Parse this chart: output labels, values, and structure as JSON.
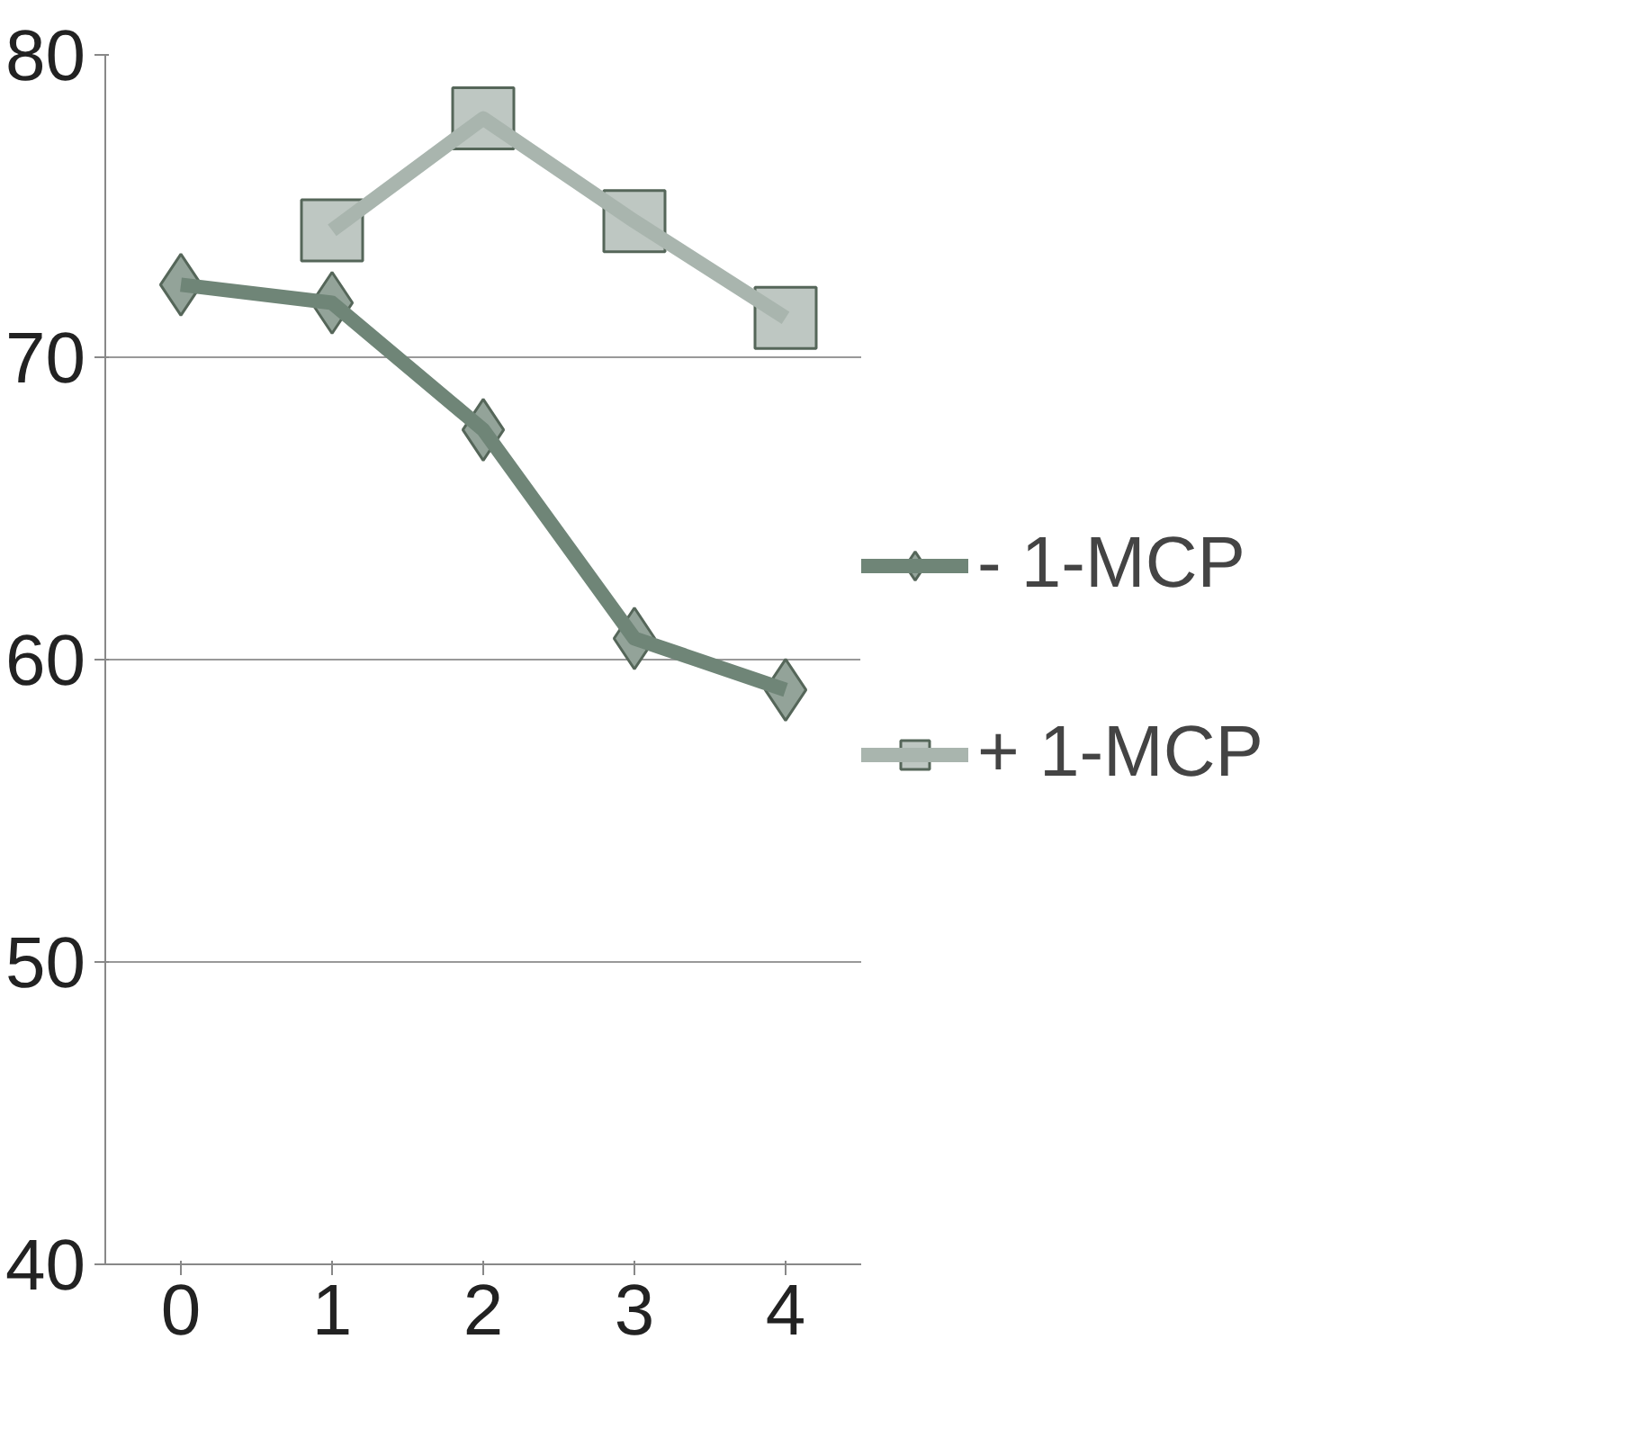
{
  "chart_data": {
    "type": "line",
    "categories": [
      "0",
      "1",
      "2",
      "3",
      "4"
    ],
    "series": [
      {
        "name": "- 1-MCP",
        "color": "#6f8577",
        "marker": "diamond",
        "values": [
          72.4,
          71.8,
          67.6,
          60.7,
          59.0
        ]
      },
      {
        "name": "+ 1-MCP",
        "color": "#a9b5ae",
        "marker": "square",
        "values": [
          null,
          74.2,
          77.9,
          74.5,
          71.3
        ]
      }
    ],
    "ylim": [
      40,
      80
    ],
    "yticks": [
      40,
      50,
      60,
      70,
      80
    ],
    "grid": "y",
    "legend": "right",
    "line_style": "solid"
  }
}
